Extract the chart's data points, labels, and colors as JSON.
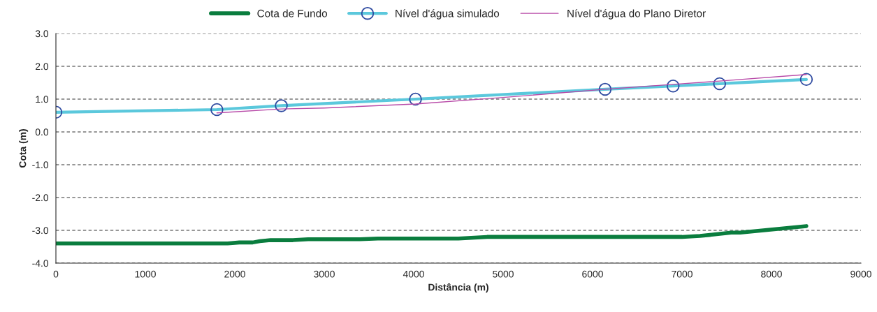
{
  "chart_data": {
    "type": "line",
    "xlabel": "Distância (m)",
    "ylabel": "Cota (m)",
    "xlim": [
      0,
      9000
    ],
    "xticks": [
      0,
      1000,
      2000,
      3000,
      4000,
      5000,
      6000,
      7000,
      8000,
      9000
    ],
    "ylim": [
      -4,
      3
    ],
    "yticks": [
      {
        "value": -4,
        "label": "-4.0"
      },
      {
        "value": -3,
        "label": "-3.0"
      },
      {
        "value": -2,
        "label": "-2.0"
      },
      {
        "value": -1,
        "label": "-1.0"
      },
      {
        "value": 0,
        "label": "0.0"
      },
      {
        "value": 1,
        "label": "1.0"
      },
      {
        "value": 2,
        "label": "2.0"
      },
      {
        "value": 3,
        "label": "3.0"
      }
    ],
    "grid": "y",
    "legend": "top",
    "series": [
      {
        "name": "Cota de Fundo",
        "color": "#0a7d3e",
        "marker": "none",
        "x": [
          0,
          1920,
          2050,
          2200,
          2280,
          2400,
          2650,
          2820,
          3400,
          3600,
          4500,
          4820,
          7000,
          7200,
          7350,
          7550,
          7650,
          8390
        ],
        "values": [
          -3.4,
          -3.4,
          -3.37,
          -3.37,
          -3.33,
          -3.3,
          -3.3,
          -3.27,
          -3.27,
          -3.25,
          -3.25,
          -3.2,
          -3.2,
          -3.17,
          -3.13,
          -3.07,
          -3.07,
          -2.87
        ]
      },
      {
        "name": "Nível d'água simulado",
        "color": "#5bc8dc",
        "marker": "circle",
        "x": [
          0,
          1800,
          2520,
          4020,
          6140,
          6900,
          7420,
          8390
        ],
        "values": [
          0.6,
          0.68,
          0.8,
          1.0,
          1.3,
          1.4,
          1.47,
          1.6
        ]
      },
      {
        "name": "Nível d'água do Plano Diretor",
        "color": "#b84aa8",
        "marker": "none",
        "x": [
          1800,
          2520,
          3000,
          4020,
          5000,
          6140,
          6900,
          7420,
          8390
        ],
        "values": [
          0.58,
          0.7,
          0.73,
          0.85,
          1.05,
          1.3,
          1.45,
          1.55,
          1.75
        ]
      }
    ]
  }
}
